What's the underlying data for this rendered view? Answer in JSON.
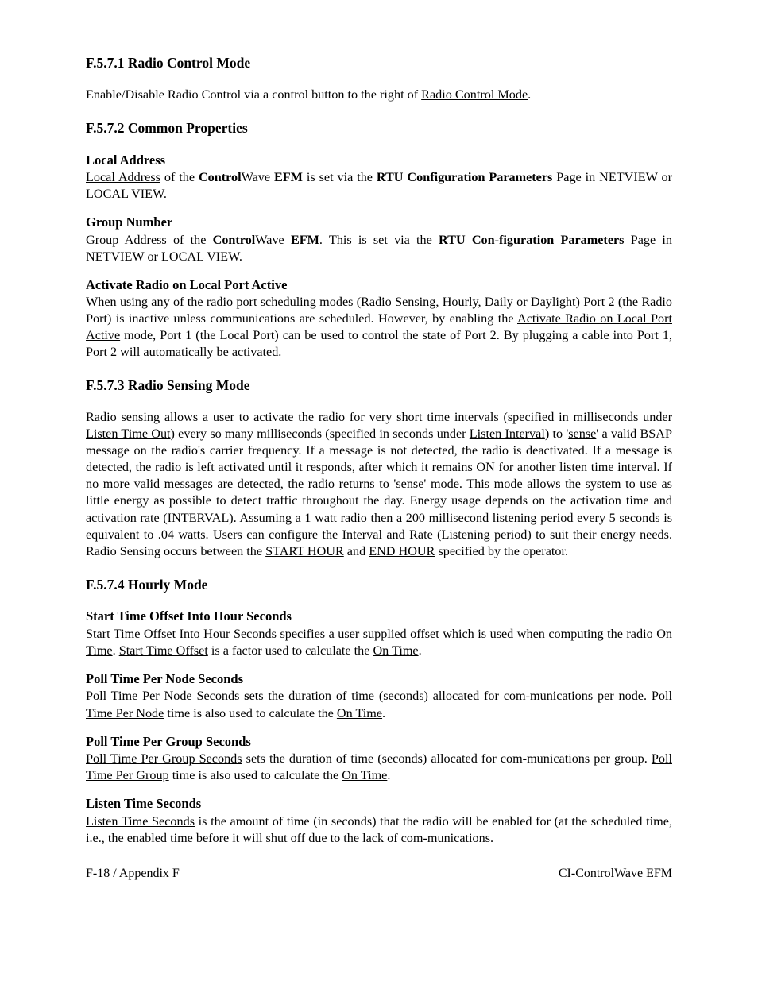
{
  "s1": {
    "heading": "F.5.7.1  Radio Control Mode",
    "p1_a": "Enable/Disable Radio Control via a control button to the right of ",
    "p1_u": "Radio Control Mode",
    "p1_b": "."
  },
  "s2": {
    "heading": "F.5.7.2  Common Properties",
    "la_h": "Local Address",
    "la_1": "Local Address",
    "la_2": " of the ",
    "la_3": "Control",
    "la_4": "Wave ",
    "la_5": "EFM",
    "la_6": " is set via the ",
    "la_7": "RTU Configuration Parameters",
    "la_8": " Page in NETVIEW or LOCAL VIEW.",
    "gn_h": "Group Number",
    "gn_1": "Group Address",
    "gn_2": " of the ",
    "gn_3": "Control",
    "gn_4": "Wave ",
    "gn_5": "EFM",
    "gn_6": ". This is set via the ",
    "gn_7": "RTU Con-figuration Parameters",
    "gn_8": " Page in NETVIEW or LOCAL VIEW.",
    "ar_h": "Activate Radio on Local Port Active",
    "ar_1": "When using any of the radio port scheduling modes (",
    "ar_2": "Radio Sensing",
    "ar_3": ", ",
    "ar_4": "Hourly",
    "ar_5": ", ",
    "ar_6": "Daily",
    "ar_7": " or ",
    "ar_8": "Daylight",
    "ar_9": ") Port 2 (the Radio Port) is inactive unless communications are scheduled. However, by enabling the ",
    "ar_10": "Activate Radio on Local Port Active",
    "ar_11": " mode, Port 1 (the Local Port) can be used to control the state of Port 2. By plugging a cable into Port 1, Port 2 will automatically be activated."
  },
  "s3": {
    "heading": "F.5.7.3  Radio Sensing Mode",
    "p_1": "Radio sensing allows a user to activate the radio for very short time intervals (specified in milliseconds under ",
    "p_2": "Listen Time Out",
    "p_3": ") every so many milliseconds (specified in seconds under ",
    "p_4": "Listen Interval",
    "p_5": ") to '",
    "p_6": "sense",
    "p_7": "' a valid BSAP message on the radio's carrier frequency. If a message is not detected, the radio is deactivated. If a message is detected, the radio is left activated until it responds, after which it remains ON for another listen time interval. If no more valid messages are detected, the radio returns to '",
    "p_8": "sense",
    "p_9": "' mode. This mode allows the system to use as little energy as possible to detect traffic throughout the day. Energy usage depends on the activation time and activation rate (INTERVAL). Assuming a 1 watt radio then a 200 millisecond listening period every 5 seconds is equivalent to .04 watts. Users can configure the Interval and Rate (Listening period) to suit their energy needs. Radio Sensing occurs between the ",
    "p_10": "START HOUR",
    "p_11": " and ",
    "p_12": "END HOUR",
    "p_13": " specified by the operator."
  },
  "s4": {
    "heading": "F.5.7.4  Hourly Mode",
    "st_h": "Start Time Offset Into Hour Seconds",
    "st_1": "Start Time Offset Into Hour Seconds",
    "st_2": " specifies a user supplied offset which is used when computing the radio ",
    "st_3": "On Time",
    "st_4": ". ",
    "st_5": "Start Time Offset",
    "st_6": " is a factor used to calculate the ",
    "st_7": "On Time",
    "st_8": ".",
    "pn_h": "Poll Time Per Node Seconds",
    "pn_1": "Poll Time Per Node Seconds",
    "pn_2": " ",
    "pn_3": "s",
    "pn_4": "ets the duration of time (seconds) allocated for com-munications per node. ",
    "pn_5": "Poll Time Per Node",
    "pn_6": " time is also used to calculate the ",
    "pn_7": "On Time",
    "pn_8": ".",
    "pg_h": "Poll Time Per Group Seconds",
    "pg_1": "Poll Time Per Group Seconds",
    "pg_2": " sets the duration of time (seconds) allocated for com-munications per group. ",
    "pg_3": "Poll Time Per Group",
    "pg_4": " time is also used to calculate the ",
    "pg_5": "On Time",
    "pg_6": ".",
    "lt_h": "Listen Time Seconds",
    "lt_1": "Listen Time Seconds",
    "lt_2": " is the amount of time (in seconds) that the radio will be enabled for (at the scheduled time, i.e., the enabled time before it will shut off due to the lack of com-munications."
  },
  "footer": {
    "left": "F-18 / Appendix F",
    "right": "CI-ControlWave EFM"
  }
}
